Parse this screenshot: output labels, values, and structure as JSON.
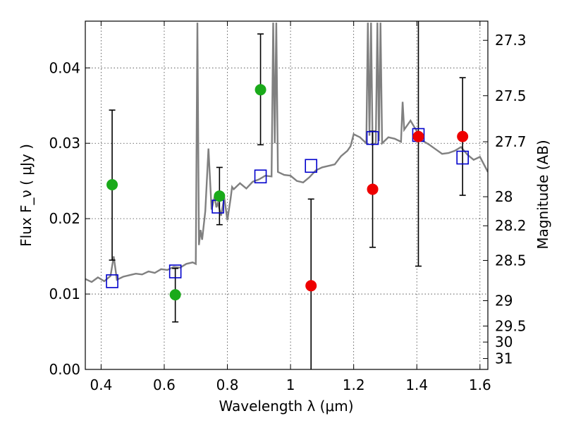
{
  "chart_data": {
    "type": "scatter",
    "xlabel": "Wavelength  λ (μm)",
    "ylabel_left": "Flux  F_ν  ( μJy )",
    "ylabel_right": "Magnitude (AB)",
    "xlim": [
      0.35,
      1.625
    ],
    "ylim": [
      0.0,
      0.0462
    ],
    "x_ticks": [
      "0.4",
      "0.6",
      "0.8",
      "1",
      "1.2",
      "1.4",
      "1.6"
    ],
    "y_ticks": [
      "0.00",
      "0.01",
      "0.02",
      "0.03",
      "0.04"
    ],
    "right_ticks": [
      "27.3",
      "27.5",
      "27.7",
      "28",
      "28.2",
      "28.5",
      "29",
      "29.5",
      "30",
      "31"
    ],
    "grid": true,
    "colors": {
      "spectrum": "#808080",
      "model_box": "#0000cc",
      "green_points": "#1aaa1a",
      "red_points": "#ee0000",
      "errorbar": "#000000"
    },
    "series": [
      {
        "kind": "spectrum",
        "x": [
          0.35,
          0.37,
          0.39,
          0.41,
          0.43,
          0.44,
          0.45,
          0.47,
          0.49,
          0.51,
          0.53,
          0.55,
          0.57,
          0.59,
          0.61,
          0.63,
          0.65,
          0.67,
          0.69,
          0.7,
          0.705,
          0.71,
          0.715,
          0.72,
          0.73,
          0.74,
          0.75,
          0.76,
          0.765,
          0.77,
          0.78,
          0.79,
          0.8,
          0.81,
          0.815,
          0.82,
          0.84,
          0.86,
          0.88,
          0.9,
          0.92,
          0.94,
          0.945,
          0.95,
          0.955,
          0.96,
          0.98,
          1.0,
          1.02,
          1.04,
          1.06,
          1.08,
          1.1,
          1.12,
          1.14,
          1.16,
          1.18,
          1.19,
          1.2,
          1.22,
          1.24,
          1.245,
          1.25,
          1.255,
          1.26,
          1.27,
          1.275,
          1.28,
          1.285,
          1.29,
          1.31,
          1.33,
          1.35,
          1.355,
          1.36,
          1.38,
          1.4,
          1.42,
          1.44,
          1.46,
          1.48,
          1.5,
          1.52,
          1.54,
          1.56,
          1.58,
          1.6,
          1.625
        ],
        "y": [
          0.012,
          0.0116,
          0.0122,
          0.0117,
          0.0124,
          0.015,
          0.0119,
          0.0123,
          0.0125,
          0.0127,
          0.0126,
          0.013,
          0.0128,
          0.0133,
          0.0132,
          0.0136,
          0.0135,
          0.014,
          0.0142,
          0.014,
          0.046,
          0.0165,
          0.0185,
          0.0172,
          0.021,
          0.0293,
          0.0212,
          0.023,
          0.0215,
          0.0221,
          0.0204,
          0.0228,
          0.0198,
          0.0226,
          0.0242,
          0.0239,
          0.0247,
          0.024,
          0.0249,
          0.0252,
          0.0257,
          0.0256,
          0.046,
          0.03,
          0.046,
          0.0262,
          0.0258,
          0.0257,
          0.025,
          0.0248,
          0.0255,
          0.0264,
          0.0268,
          0.027,
          0.0272,
          0.0283,
          0.029,
          0.0296,
          0.0312,
          0.0308,
          0.03,
          0.046,
          0.031,
          0.046,
          0.0298,
          0.03,
          0.046,
          0.0303,
          0.046,
          0.03,
          0.0308,
          0.0306,
          0.0302,
          0.0355,
          0.0318,
          0.033,
          0.0316,
          0.0303,
          0.0298,
          0.0292,
          0.0286,
          0.0287,
          0.029,
          0.0295,
          0.0285,
          0.0278,
          0.0282,
          0.0262
        ]
      },
      {
        "kind": "model_boxes",
        "x": [
          0.435,
          0.635,
          0.77,
          0.905,
          1.065,
          1.26,
          1.405,
          1.545
        ],
        "y": [
          0.0117,
          0.013,
          0.0216,
          0.0256,
          0.027,
          0.0307,
          0.0311,
          0.0281
        ]
      },
      {
        "kind": "green_points",
        "x": [
          0.435,
          0.635,
          0.775,
          0.905
        ],
        "y": [
          0.0245,
          0.0099,
          0.023,
          0.0371
        ],
        "yerr_low": [
          0.0145,
          0.0063,
          0.0192,
          0.0298
        ],
        "yerr_high": [
          0.0344,
          0.0134,
          0.0268,
          0.0445
        ]
      },
      {
        "kind": "red_points",
        "x": [
          1.065,
          1.26,
          1.405,
          1.545
        ],
        "y": [
          0.0111,
          0.0239,
          0.0309,
          0.0309
        ],
        "yerr_low": [
          0.0,
          0.0162,
          0.0137,
          0.0231
        ],
        "yerr_high": [
          0.0226,
          0.0316,
          0.0462,
          0.0387
        ]
      }
    ]
  }
}
